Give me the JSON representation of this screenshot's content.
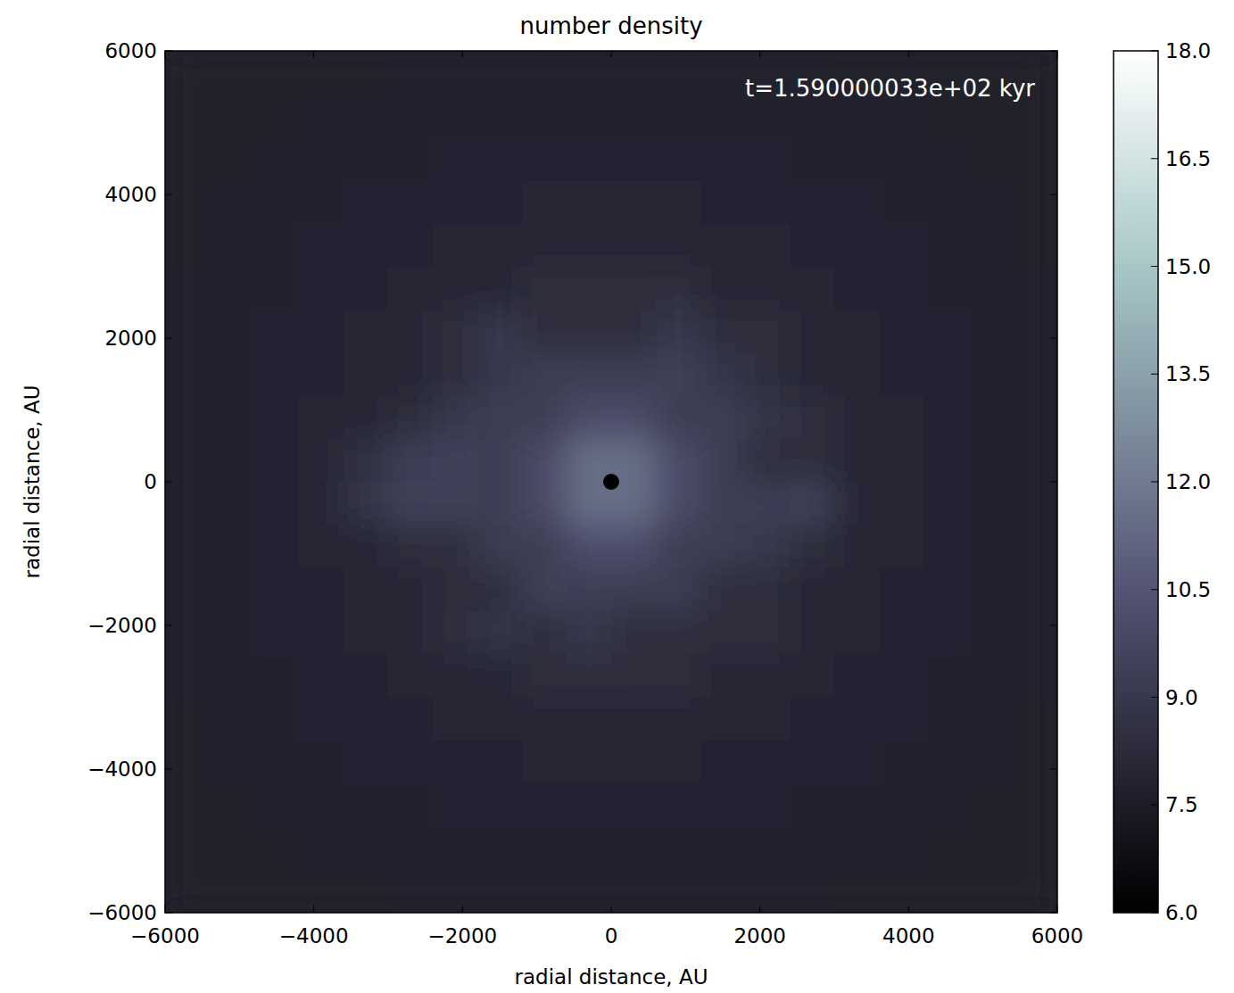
{
  "chart_data": {
    "type": "heatmap",
    "title": "number density",
    "annotation": "t=1.590000033e+02 kyr",
    "x_label": "radial distance, AU",
    "y_label": "radial distance, AU",
    "xlim": [
      -6000,
      6000
    ],
    "ylim": [
      -6000,
      6000
    ],
    "xticks": [
      {
        "value": -6000,
        "label": "−6000"
      },
      {
        "value": -4000,
        "label": "−4000"
      },
      {
        "value": -2000,
        "label": "−2000"
      },
      0,
      2000,
      4000,
      6000
    ],
    "yticks": [
      {
        "value": -6000,
        "label": "−6000"
      },
      {
        "value": -4000,
        "label": "−4000"
      },
      {
        "value": -2000,
        "label": "−2000"
      },
      0,
      2000,
      4000,
      6000
    ],
    "cells": [
      [
        7.7,
        7.7,
        7.7,
        7.7,
        7.7,
        7.8,
        7.8,
        7.8,
        7.8,
        7.8,
        7.8,
        7.8,
        7.8,
        7.8,
        7.8,
        7.7,
        7.7,
        7.7,
        7.7,
        7.7
      ],
      [
        7.7,
        7.7,
        7.7,
        7.8,
        7.8,
        7.8,
        7.8,
        7.8,
        7.8,
        7.8,
        7.8,
        7.8,
        7.8,
        7.8,
        7.8,
        7.8,
        7.8,
        7.7,
        7.7,
        7.7
      ],
      [
        7.7,
        7.7,
        7.8,
        7.8,
        7.8,
        7.8,
        7.9,
        7.9,
        7.9,
        7.9,
        7.9,
        7.9,
        7.9,
        7.9,
        7.8,
        7.8,
        7.8,
        7.8,
        7.7,
        7.7
      ],
      [
        7.7,
        7.8,
        7.8,
        7.8,
        7.9,
        7.9,
        7.9,
        7.9,
        8.1,
        8.1,
        8.1,
        8.1,
        7.9,
        7.9,
        7.9,
        7.9,
        7.8,
        7.8,
        7.8,
        7.7
      ],
      [
        7.7,
        7.8,
        7.8,
        7.9,
        7.9,
        7.9,
        8.1,
        8.1,
        8.1,
        8.1,
        8.1,
        8.1,
        8.1,
        8.1,
        7.9,
        7.9,
        7.9,
        7.8,
        7.8,
        7.7
      ],
      [
        7.8,
        7.8,
        7.8,
        7.9,
        7.9,
        8.1,
        8.1,
        8.1,
        8.4,
        8.4,
        8.4,
        8.4,
        8.1,
        8.1,
        8.1,
        7.9,
        7.9,
        7.8,
        7.8,
        7.8
      ],
      [
        7.8,
        7.8,
        7.9,
        7.9,
        8.1,
        8.1,
        8.4,
        9.0,
        8.4,
        8.4,
        8.4,
        9.0,
        8.4,
        8.4,
        8.1,
        8.1,
        7.9,
        7.9,
        7.8,
        7.8
      ],
      [
        7.8,
        7.8,
        7.9,
        7.9,
        8.1,
        8.1,
        8.4,
        9.0,
        9.2,
        9.2,
        9.2,
        9.4,
        8.9,
        8.4,
        8.1,
        8.1,
        7.9,
        7.9,
        7.8,
        7.8
      ],
      [
        7.8,
        7.8,
        7.9,
        8.1,
        8.1,
        8.4,
        9.0,
        9.2,
        9.2,
        10.0,
        10.0,
        9.2,
        9.2,
        8.8,
        8.4,
        8.1,
        8.1,
        7.9,
        7.8,
        7.8
      ],
      [
        7.8,
        7.8,
        7.9,
        8.1,
        8.6,
        9.3,
        9.5,
        9.2,
        10.0,
        11.5,
        11.5,
        10.0,
        9.2,
        8.4,
        8.4,
        8.1,
        8.1,
        7.9,
        7.8,
        7.8
      ],
      [
        7.8,
        7.8,
        7.9,
        8.1,
        8.8,
        9.4,
        9.4,
        9.2,
        10.0,
        11.5,
        11.5,
        10.0,
        9.2,
        9.3,
        9.4,
        8.1,
        8.1,
        7.9,
        7.8,
        7.8
      ],
      [
        7.8,
        7.8,
        7.9,
        8.1,
        8.1,
        8.4,
        8.4,
        9.2,
        9.2,
        10.2,
        10.2,
        9.2,
        9.2,
        9.0,
        8.4,
        8.1,
        8.1,
        7.9,
        7.8,
        7.8
      ],
      [
        7.8,
        7.8,
        7.9,
        7.9,
        8.1,
        8.1,
        8.4,
        8.4,
        9.4,
        9.2,
        9.2,
        9.3,
        8.4,
        8.4,
        8.1,
        8.1,
        7.9,
        7.9,
        7.8,
        7.8
      ],
      [
        7.8,
        7.8,
        7.9,
        7.9,
        8.1,
        8.1,
        8.4,
        8.9,
        8.4,
        9.0,
        8.4,
        8.4,
        8.4,
        8.4,
        8.1,
        8.1,
        7.9,
        7.9,
        7.8,
        7.8
      ],
      [
        7.8,
        7.8,
        7.8,
        7.9,
        7.9,
        8.1,
        8.1,
        8.1,
        8.4,
        8.4,
        8.4,
        8.4,
        8.1,
        8.1,
        8.1,
        7.9,
        7.9,
        7.8,
        7.8,
        7.8
      ],
      [
        7.7,
        7.8,
        7.8,
        7.9,
        7.9,
        7.9,
        8.1,
        8.1,
        8.1,
        8.1,
        8.1,
        8.1,
        8.1,
        8.1,
        7.9,
        7.9,
        7.9,
        7.8,
        7.8,
        7.7
      ],
      [
        7.7,
        7.8,
        7.8,
        7.8,
        7.9,
        7.9,
        7.9,
        7.9,
        8.1,
        8.1,
        8.1,
        8.1,
        7.9,
        7.9,
        7.9,
        7.9,
        7.8,
        7.8,
        7.8,
        7.7
      ],
      [
        7.7,
        7.7,
        7.8,
        7.8,
        7.8,
        7.8,
        7.9,
        7.9,
        7.9,
        7.9,
        7.9,
        7.9,
        7.9,
        7.9,
        7.8,
        7.8,
        7.8,
        7.8,
        7.7,
        7.7
      ],
      [
        7.7,
        7.7,
        7.7,
        7.8,
        7.8,
        7.8,
        7.8,
        7.8,
        7.8,
        7.8,
        7.8,
        7.8,
        7.8,
        7.8,
        7.8,
        7.8,
        7.8,
        7.7,
        7.7,
        7.7
      ],
      [
        7.7,
        7.7,
        7.7,
        7.7,
        7.7,
        7.8,
        7.8,
        7.8,
        7.8,
        7.8,
        7.8,
        7.8,
        7.8,
        7.8,
        7.8,
        7.7,
        7.7,
        7.7,
        7.7,
        7.7
      ]
    ],
    "color_range": [
      6,
      18
    ],
    "color_ticks": [
      {
        "value": 6,
        "label": "6.0"
      },
      {
        "value": 7.5,
        "label": "7.5"
      },
      {
        "value": 9,
        "label": "9.0"
      },
      {
        "value": 10.5,
        "label": "10.5"
      },
      {
        "value": 12,
        "label": "12.0"
      },
      {
        "value": 13.5,
        "label": "13.5"
      },
      {
        "value": 15,
        "label": "15.0"
      },
      {
        "value": 16.5,
        "label": "16.5"
      },
      {
        "value": 18,
        "label": "18.0"
      }
    ],
    "markers": {
      "x": [
        0
      ],
      "y": [
        0
      ],
      "color": "#000000"
    }
  }
}
